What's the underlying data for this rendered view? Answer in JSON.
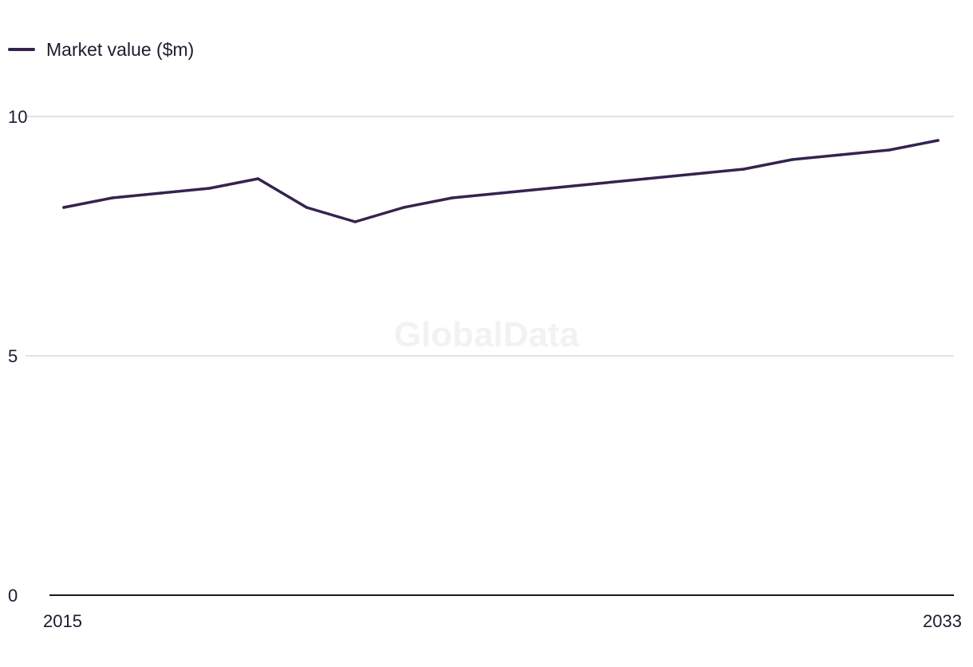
{
  "legend": {
    "label": "Market value ($m)"
  },
  "watermark": "GlobalData",
  "colors": {
    "series": "#35234f",
    "grid": "#d9d9d9",
    "axis": "#1a1a1a"
  },
  "chart_data": {
    "type": "line",
    "title": "",
    "xlabel": "",
    "ylabel": "",
    "x": [
      2015,
      2016,
      2017,
      2018,
      2019,
      2020,
      2021,
      2022,
      2023,
      2024,
      2025,
      2026,
      2027,
      2028,
      2029,
      2030,
      2031,
      2032,
      2033
    ],
    "series": [
      {
        "name": "Market value ($m)",
        "values": [
          8.1,
          8.3,
          8.4,
          8.5,
          8.7,
          8.1,
          7.8,
          8.1,
          8.3,
          8.4,
          8.5,
          8.6,
          8.7,
          8.8,
          8.9,
          9.1,
          9.2,
          9.3,
          9.5
        ]
      }
    ],
    "ylim": [
      0,
      10
    ],
    "y_ticks": [
      "0",
      "5",
      "10"
    ],
    "x_tick_labels": [
      "2015",
      "2033"
    ],
    "grid": true,
    "legend_position": "top-left"
  }
}
